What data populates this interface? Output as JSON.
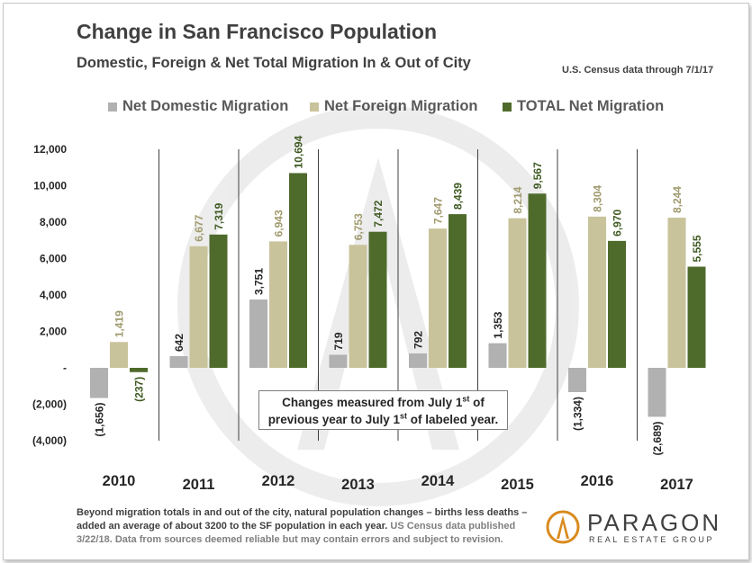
{
  "header": {
    "title": "Change in San Francisco Population",
    "subtitle": "Domestic, Foreign & Net Total Migration In & Out of City",
    "source_note": "U.S. Census data through 7/1/17"
  },
  "colors": {
    "domestic": "#b1b1b1",
    "foreign": "#c9c39c",
    "total": "#4f6b2c"
  },
  "chart_data": {
    "type": "bar",
    "title": "Change in San Francisco Population",
    "subtitle": "Domestic, Foreign & Net Total Migration In & Out of City",
    "categories": [
      "2010",
      "2011",
      "2012",
      "2013",
      "2014",
      "2015",
      "2016",
      "2017"
    ],
    "series": [
      {
        "name": "Net Domestic Migration",
        "values": [
          -1656,
          642,
          3751,
          719,
          792,
          1353,
          -1334,
          -2689
        ],
        "labels": [
          "(1,656)",
          "642",
          "3,751",
          "719",
          "792",
          "1,353",
          "(1,334)",
          "(2,689)"
        ]
      },
      {
        "name": "Net Foreign Migration",
        "values": [
          1419,
          6677,
          6943,
          6753,
          7647,
          8214,
          8304,
          8244
        ],
        "labels": [
          "1,419",
          "6,677",
          "6,943",
          "6,753",
          "7,647",
          "8,214",
          "8,304",
          "8,244"
        ]
      },
      {
        "name": "TOTAL Net Migration",
        "values": [
          -237,
          7319,
          10694,
          7472,
          8439,
          9567,
          6970,
          5555
        ],
        "labels": [
          "(237)",
          "7,319",
          "10,694",
          "7,472",
          "8,439",
          "9,567",
          "6,970",
          "5,555"
        ]
      }
    ],
    "ylim": [
      -4000,
      12000
    ],
    "yticks": [
      12000,
      10000,
      8000,
      6000,
      4000,
      2000,
      0,
      -2000,
      -4000
    ],
    "ytick_labels": [
      "12,000",
      "10,000",
      "8,000",
      "6,000",
      "4,000",
      "2,000",
      "-",
      "(2,000)",
      "(4,000)"
    ],
    "legend": "top",
    "grid": false
  },
  "callout": {
    "line1_pre": "Changes measured from July 1",
    "line1_sup": "st",
    "line1_post": " of",
    "line2_pre": "previous year to July 1",
    "line2_sup": "st",
    "line2_post": " of labeled year."
  },
  "footer": {
    "text_main": "Beyond migration totals in and out of the city, natural population changes – births less deaths – added an average of about 3200 to the SF population in each year.",
    "text_grey": " US Census data published 3/22/18. Data from sources  deemed reliable but may contain errors and subject to revision."
  },
  "logo": {
    "name": "PARAGON",
    "tagline": "REAL ESTATE GROUP"
  }
}
